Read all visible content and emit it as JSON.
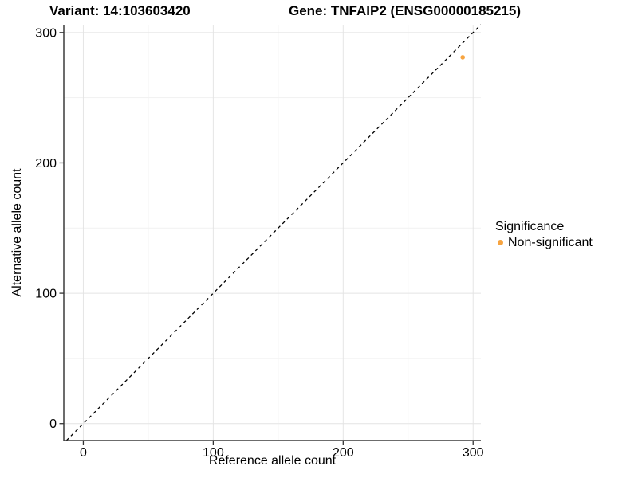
{
  "title": {
    "variant": "Variant: 14:103603420",
    "gene": "Gene: TNFAIP2 (ENSG00000185215)"
  },
  "axes": {
    "x_label": "Reference allele count",
    "y_label": "Alternative allele count"
  },
  "legend": {
    "title": "Significance",
    "items": [
      {
        "label": "Non-significant",
        "color": "#F7A440"
      }
    ]
  },
  "colors": {
    "point": "#F7A440",
    "axis_line": "#3b3b3b",
    "tick_mark": "#333333",
    "major_grid": "#e4e4e4",
    "minor_grid": "#f1f1f1",
    "reference_line": "#000000",
    "background": "#ffffff"
  },
  "chart_data": {
    "type": "scatter",
    "title": "Variant: 14:103603420   Gene: TNFAIP2 (ENSG00000185215)",
    "xlabel": "Reference allele count",
    "ylabel": "Alternative allele count",
    "x_ticks": [
      0,
      100,
      200,
      300
    ],
    "y_ticks": [
      0,
      100,
      200,
      300
    ],
    "x_minor_ticks": [
      50,
      150,
      250
    ],
    "y_minor_ticks": [
      50,
      150,
      250
    ],
    "xlim": [
      -15,
      306
    ],
    "ylim": [
      -13,
      306
    ],
    "grid": true,
    "legend_position": "right",
    "legend_title": "Significance",
    "reference_line": {
      "type": "identity",
      "style": "dashed",
      "color": "#000000"
    },
    "series": [
      {
        "name": "Non-significant",
        "color": "#F7A440",
        "points": [
          {
            "x": 292,
            "y": 281
          }
        ]
      }
    ]
  }
}
